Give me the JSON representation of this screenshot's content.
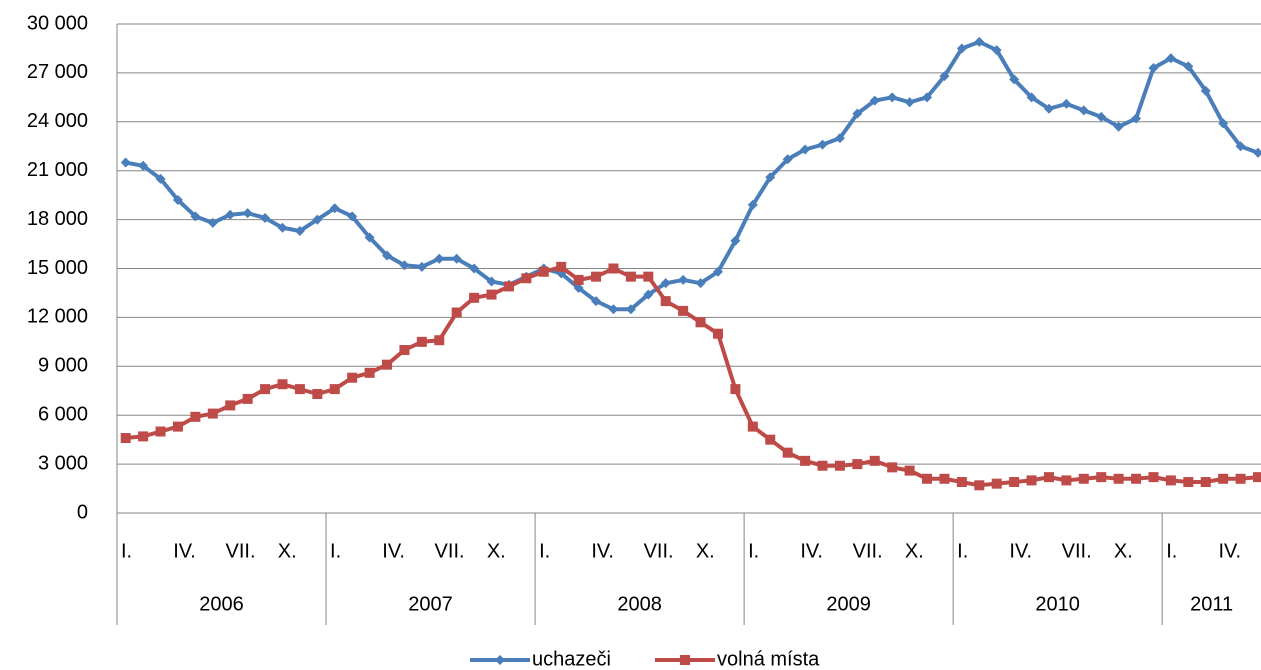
{
  "chart_data": {
    "type": "line",
    "categories": [
      "I.",
      null,
      null,
      "IV.",
      null,
      null,
      "VII.",
      null,
      null,
      "X.",
      null,
      null,
      "I.",
      null,
      null,
      "IV.",
      null,
      null,
      "VII.",
      null,
      null,
      "X.",
      null,
      null,
      "I.",
      null,
      null,
      "IV.",
      null,
      null,
      "VII.",
      null,
      null,
      "X.",
      null,
      null,
      "I.",
      null,
      null,
      "IV.",
      null,
      null,
      "VII.",
      null,
      null,
      "X.",
      null,
      null,
      "I.",
      null,
      null,
      "IV.",
      null,
      null,
      "VII.",
      null,
      null,
      "X.",
      null,
      null,
      "I.",
      null,
      null,
      "IV.",
      null,
      null
    ],
    "groups": [
      "2006",
      null,
      null,
      null,
      null,
      null,
      null,
      null,
      null,
      null,
      null,
      null,
      "2007",
      null,
      null,
      null,
      null,
      null,
      null,
      null,
      null,
      null,
      null,
      null,
      "2008",
      null,
      null,
      null,
      null,
      null,
      null,
      null,
      null,
      null,
      null,
      null,
      "2009",
      null,
      null,
      null,
      null,
      null,
      null,
      null,
      null,
      null,
      null,
      null,
      "2010",
      null,
      null,
      null,
      null,
      null,
      null,
      null,
      null,
      null,
      null,
      null,
      "2011",
      null,
      null,
      null,
      null,
      null
    ],
    "series": [
      {
        "name": "uchazeči",
        "color": "#4a7ebb",
        "marker": "diamond",
        "values": [
          21500,
          21300,
          20500,
          19200,
          18200,
          17800,
          18300,
          18400,
          18100,
          17500,
          17300,
          18000,
          18700,
          18200,
          16900,
          15800,
          15200,
          15100,
          15600,
          15600,
          15000,
          14200,
          14000,
          14500,
          15000,
          14700,
          13800,
          13000,
          12500,
          12500,
          13400,
          14100,
          14300,
          14100,
          14800,
          16700,
          18900,
          20600,
          21700,
          22300,
          22600,
          23000,
          24500,
          25300,
          25500,
          25200,
          25500,
          26800,
          28500,
          28900,
          28400,
          26600,
          25500,
          24800,
          25100,
          24700,
          24300,
          23700,
          24200,
          27300,
          27900,
          27400,
          25900,
          23900,
          22500,
          22100
        ]
      },
      {
        "name": "volná místa",
        "color": "#be4b48",
        "marker": "square",
        "values": [
          4600,
          4700,
          5000,
          5300,
          5900,
          6100,
          6600,
          7000,
          7600,
          7900,
          7600,
          7300,
          7600,
          8300,
          8600,
          9100,
          10000,
          10500,
          10600,
          12300,
          13200,
          13400,
          13900,
          14400,
          14800,
          15100,
          14300,
          14500,
          15000,
          14500,
          14500,
          13000,
          12400,
          11700,
          11000,
          7600,
          5300,
          4500,
          3700,
          3200,
          2900,
          2900,
          3000,
          3200,
          2800,
          2600,
          2100,
          2100,
          1900,
          1700,
          1800,
          1900,
          2000,
          2200,
          2000,
          2100,
          2200,
          2100,
          2100,
          2200,
          2000,
          1900,
          1900,
          2100,
          2100,
          2200
        ]
      }
    ],
    "ylim": [
      0,
      30000
    ],
    "yticks": [
      0,
      {
        "value": 3000,
        "label": "3 000"
      },
      {
        "value": 6000,
        "label": "6 000"
      },
      {
        "value": 9000,
        "label": "9 000"
      },
      {
        "value": 12000,
        "label": "12 000"
      },
      {
        "value": 15000,
        "label": "15 000"
      },
      {
        "value": 18000,
        "label": "18 000"
      },
      {
        "value": 21000,
        "label": "21 000"
      },
      {
        "value": 24000,
        "label": "24 000"
      },
      {
        "value": 27000,
        "label": "27 000"
      },
      {
        "value": 30000,
        "label": "30 000"
      }
    ],
    "grid": true,
    "legend": "bottom"
  }
}
